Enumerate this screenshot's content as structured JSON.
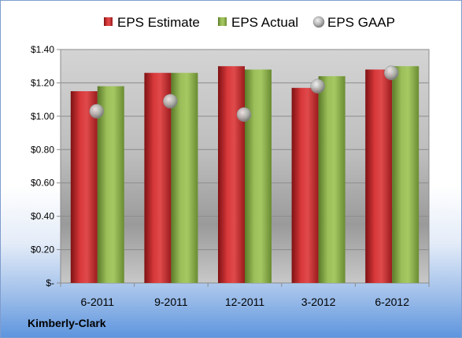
{
  "company": "Kimberly-Clark",
  "chart_data": {
    "type": "bar",
    "categories": [
      "6-2011",
      "9-2011",
      "12-2011",
      "3-2012",
      "6-2012"
    ],
    "series": [
      {
        "name": "EPS Estimate",
        "kind": "bar",
        "color": "#c0282b",
        "values": [
          1.15,
          1.26,
          1.3,
          1.17,
          1.28
        ]
      },
      {
        "name": "EPS Actual",
        "kind": "bar",
        "color": "#8fb04e",
        "values": [
          1.18,
          1.26,
          1.28,
          1.24,
          1.3
        ]
      },
      {
        "name": "EPS GAAP",
        "kind": "marker",
        "color": "#b4b4b4",
        "values": [
          1.03,
          1.09,
          1.01,
          1.18,
          1.26
        ]
      }
    ],
    "ylim": [
      0,
      1.4
    ],
    "yticks": [
      0,
      0.2,
      0.4,
      0.6,
      0.8,
      1.0,
      1.2,
      1.4
    ],
    "ytick_labels": [
      "$-",
      "$0.20",
      "$0.40",
      "$0.60",
      "$0.80",
      "$1.00",
      "$1.20",
      "$1.40"
    ],
    "legend_position": "top",
    "grid": true
  }
}
